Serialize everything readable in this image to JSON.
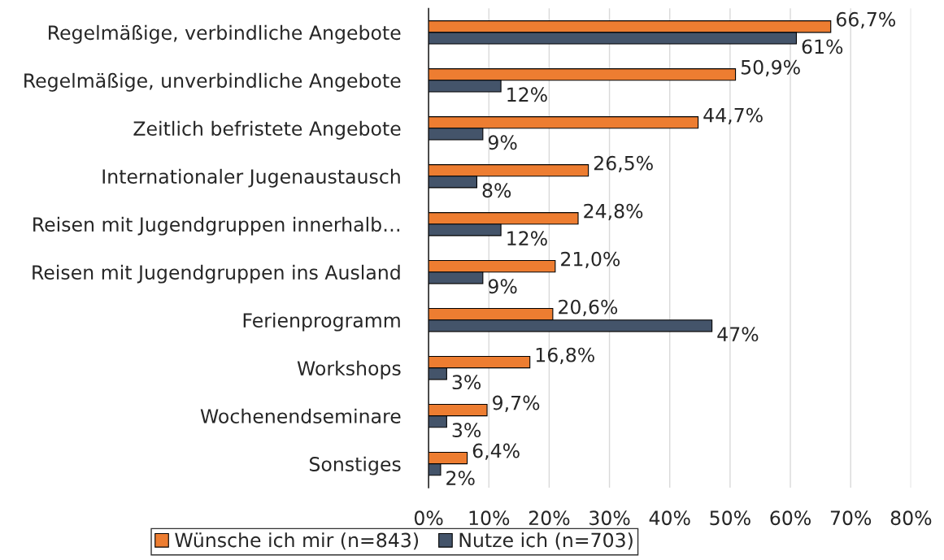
{
  "chart_data": {
    "type": "bar",
    "orientation": "horizontal",
    "categories": [
      "Regelmäßige, verbindliche Angebote",
      "Regelmäßige, unverbindliche Angebote",
      "Zeitlich befristete Angebote",
      "Internationaler Jugenaustausch",
      "Reisen mit Jugendgruppen innerhalb…",
      "Reisen mit Jugendgruppen ins Ausland",
      "Ferienprogramm",
      "Workshops",
      "Wochenendseminare",
      "Sonstiges"
    ],
    "series": [
      {
        "name": "Wünsche ich mir (n=843)",
        "color": "#ed7d31",
        "values": [
          66.7,
          50.9,
          44.7,
          26.5,
          24.8,
          21.0,
          20.6,
          16.8,
          9.7,
          6.4
        ],
        "value_labels": [
          "66,7%",
          "50,9%",
          "44,7%",
          "26,5%",
          "24,8%",
          "21,0%",
          "20,6%",
          "16,8%",
          "9,7%",
          "6,4%"
        ]
      },
      {
        "name": "Nutze ich (n=703)",
        "color": "#44546a",
        "values": [
          61,
          12,
          9,
          8,
          12,
          9,
          47,
          3,
          3,
          2
        ],
        "value_labels": [
          "61%",
          "12%",
          "9%",
          "8%",
          "12%",
          "9%",
          "47%",
          "3%",
          "3%",
          "2%"
        ]
      }
    ],
    "xlim": [
      0,
      80
    ],
    "xticks": [
      {
        "value": 0,
        "label": "0%"
      },
      {
        "value": 10,
        "label": "10%"
      },
      {
        "value": 20,
        "label": "20%"
      },
      {
        "value": 30,
        "label": "30%"
      },
      {
        "value": 40,
        "label": "40%"
      },
      {
        "value": 50,
        "label": "50%"
      },
      {
        "value": 60,
        "label": "60%"
      },
      {
        "value": 70,
        "label": "70%"
      },
      {
        "value": 80,
        "label": "80%"
      }
    ],
    "grid": "x",
    "legend": "bottom"
  }
}
